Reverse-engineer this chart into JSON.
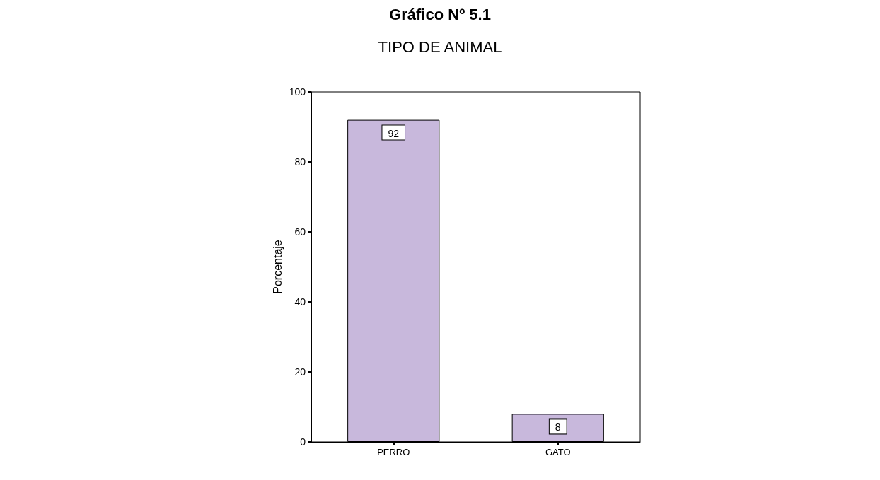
{
  "chart_data": {
    "type": "bar",
    "title": "Gráfico Nº 5.1",
    "subtitle": "TIPO DE ANIMAL",
    "ylabel": "Porcentaje",
    "categories": [
      "PERRO",
      "GATO"
    ],
    "values": [
      92,
      8
    ],
    "color": "#c8b8dc",
    "ylim": [
      0,
      100
    ],
    "yticks": [
      0,
      20,
      40,
      60,
      80,
      100
    ],
    "grid": false,
    "data_labels": true
  }
}
